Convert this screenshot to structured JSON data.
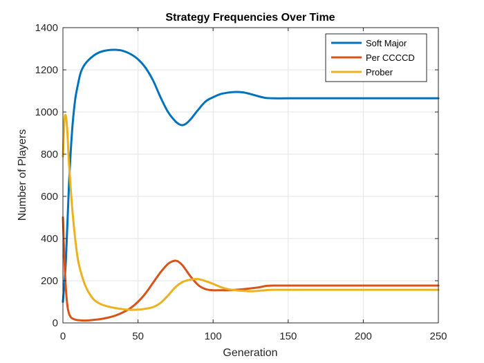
{
  "chart_data": {
    "type": "line",
    "title": "Strategy Frequencies Over Time",
    "xlabel": "Generation",
    "ylabel": "Number of Players",
    "xlim": [
      0,
      250
    ],
    "ylim": [
      0,
      1400
    ],
    "xticks": [
      0,
      50,
      100,
      150,
      200,
      250
    ],
    "yticks": [
      0,
      200,
      400,
      600,
      800,
      1000,
      1200,
      1400
    ],
    "grid": true,
    "legend_position": "top-right",
    "series": [
      {
        "name": "Soft Major",
        "color": "#0072BD",
        "x": [
          0,
          2,
          4,
          6,
          8,
          10,
          12,
          15,
          20,
          25,
          30,
          35,
          40,
          45,
          50,
          55,
          60,
          65,
          70,
          75,
          78,
          80,
          82,
          85,
          90,
          95,
          100,
          105,
          110,
          115,
          120,
          125,
          130,
          135,
          140,
          150,
          175,
          200,
          225,
          250
        ],
        "y": [
          100,
          300,
          650,
          900,
          1050,
          1130,
          1190,
          1230,
          1265,
          1285,
          1293,
          1295,
          1290,
          1275,
          1250,
          1210,
          1150,
          1070,
          1000,
          955,
          940,
          938,
          945,
          965,
          1010,
          1050,
          1070,
          1085,
          1092,
          1095,
          1093,
          1085,
          1075,
          1067,
          1065,
          1065,
          1065,
          1065,
          1065,
          1065
        ]
      },
      {
        "name": "Per CCCCD",
        "color": "#D95319",
        "x": [
          0,
          1,
          2,
          3,
          4,
          5,
          6,
          8,
          10,
          15,
          20,
          25,
          30,
          35,
          40,
          45,
          50,
          55,
          60,
          65,
          70,
          73,
          75,
          77,
          80,
          85,
          90,
          95,
          100,
          105,
          110,
          120,
          130,
          135,
          140,
          150,
          175,
          200,
          225,
          250
        ],
        "y": [
          500,
          300,
          160,
          80,
          45,
          30,
          22,
          16,
          13,
          11,
          14,
          18,
          25,
          35,
          50,
          70,
          100,
          140,
          190,
          240,
          280,
          292,
          295,
          290,
          270,
          220,
          180,
          160,
          155,
          155,
          155,
          160,
          168,
          175,
          177,
          177,
          177,
          177,
          177,
          177
        ]
      },
      {
        "name": "Prober",
        "color": "#EDB120",
        "x": [
          0,
          1,
          2,
          3,
          4,
          6,
          8,
          10,
          12,
          15,
          20,
          25,
          30,
          35,
          40,
          45,
          50,
          55,
          60,
          65,
          70,
          75,
          80,
          85,
          90,
          95,
          100,
          105,
          110,
          115,
          120,
          125,
          130,
          135,
          140,
          150,
          175,
          200,
          225,
          250
        ],
        "y": [
          790,
          960,
          980,
          900,
          760,
          560,
          410,
          300,
          240,
          175,
          115,
          90,
          78,
          70,
          65,
          62,
          63,
          67,
          75,
          95,
          130,
          170,
          195,
          205,
          208,
          198,
          185,
          170,
          160,
          155,
          152,
          150,
          152,
          155,
          157,
          157,
          157,
          157,
          157,
          157
        ]
      }
    ]
  }
}
